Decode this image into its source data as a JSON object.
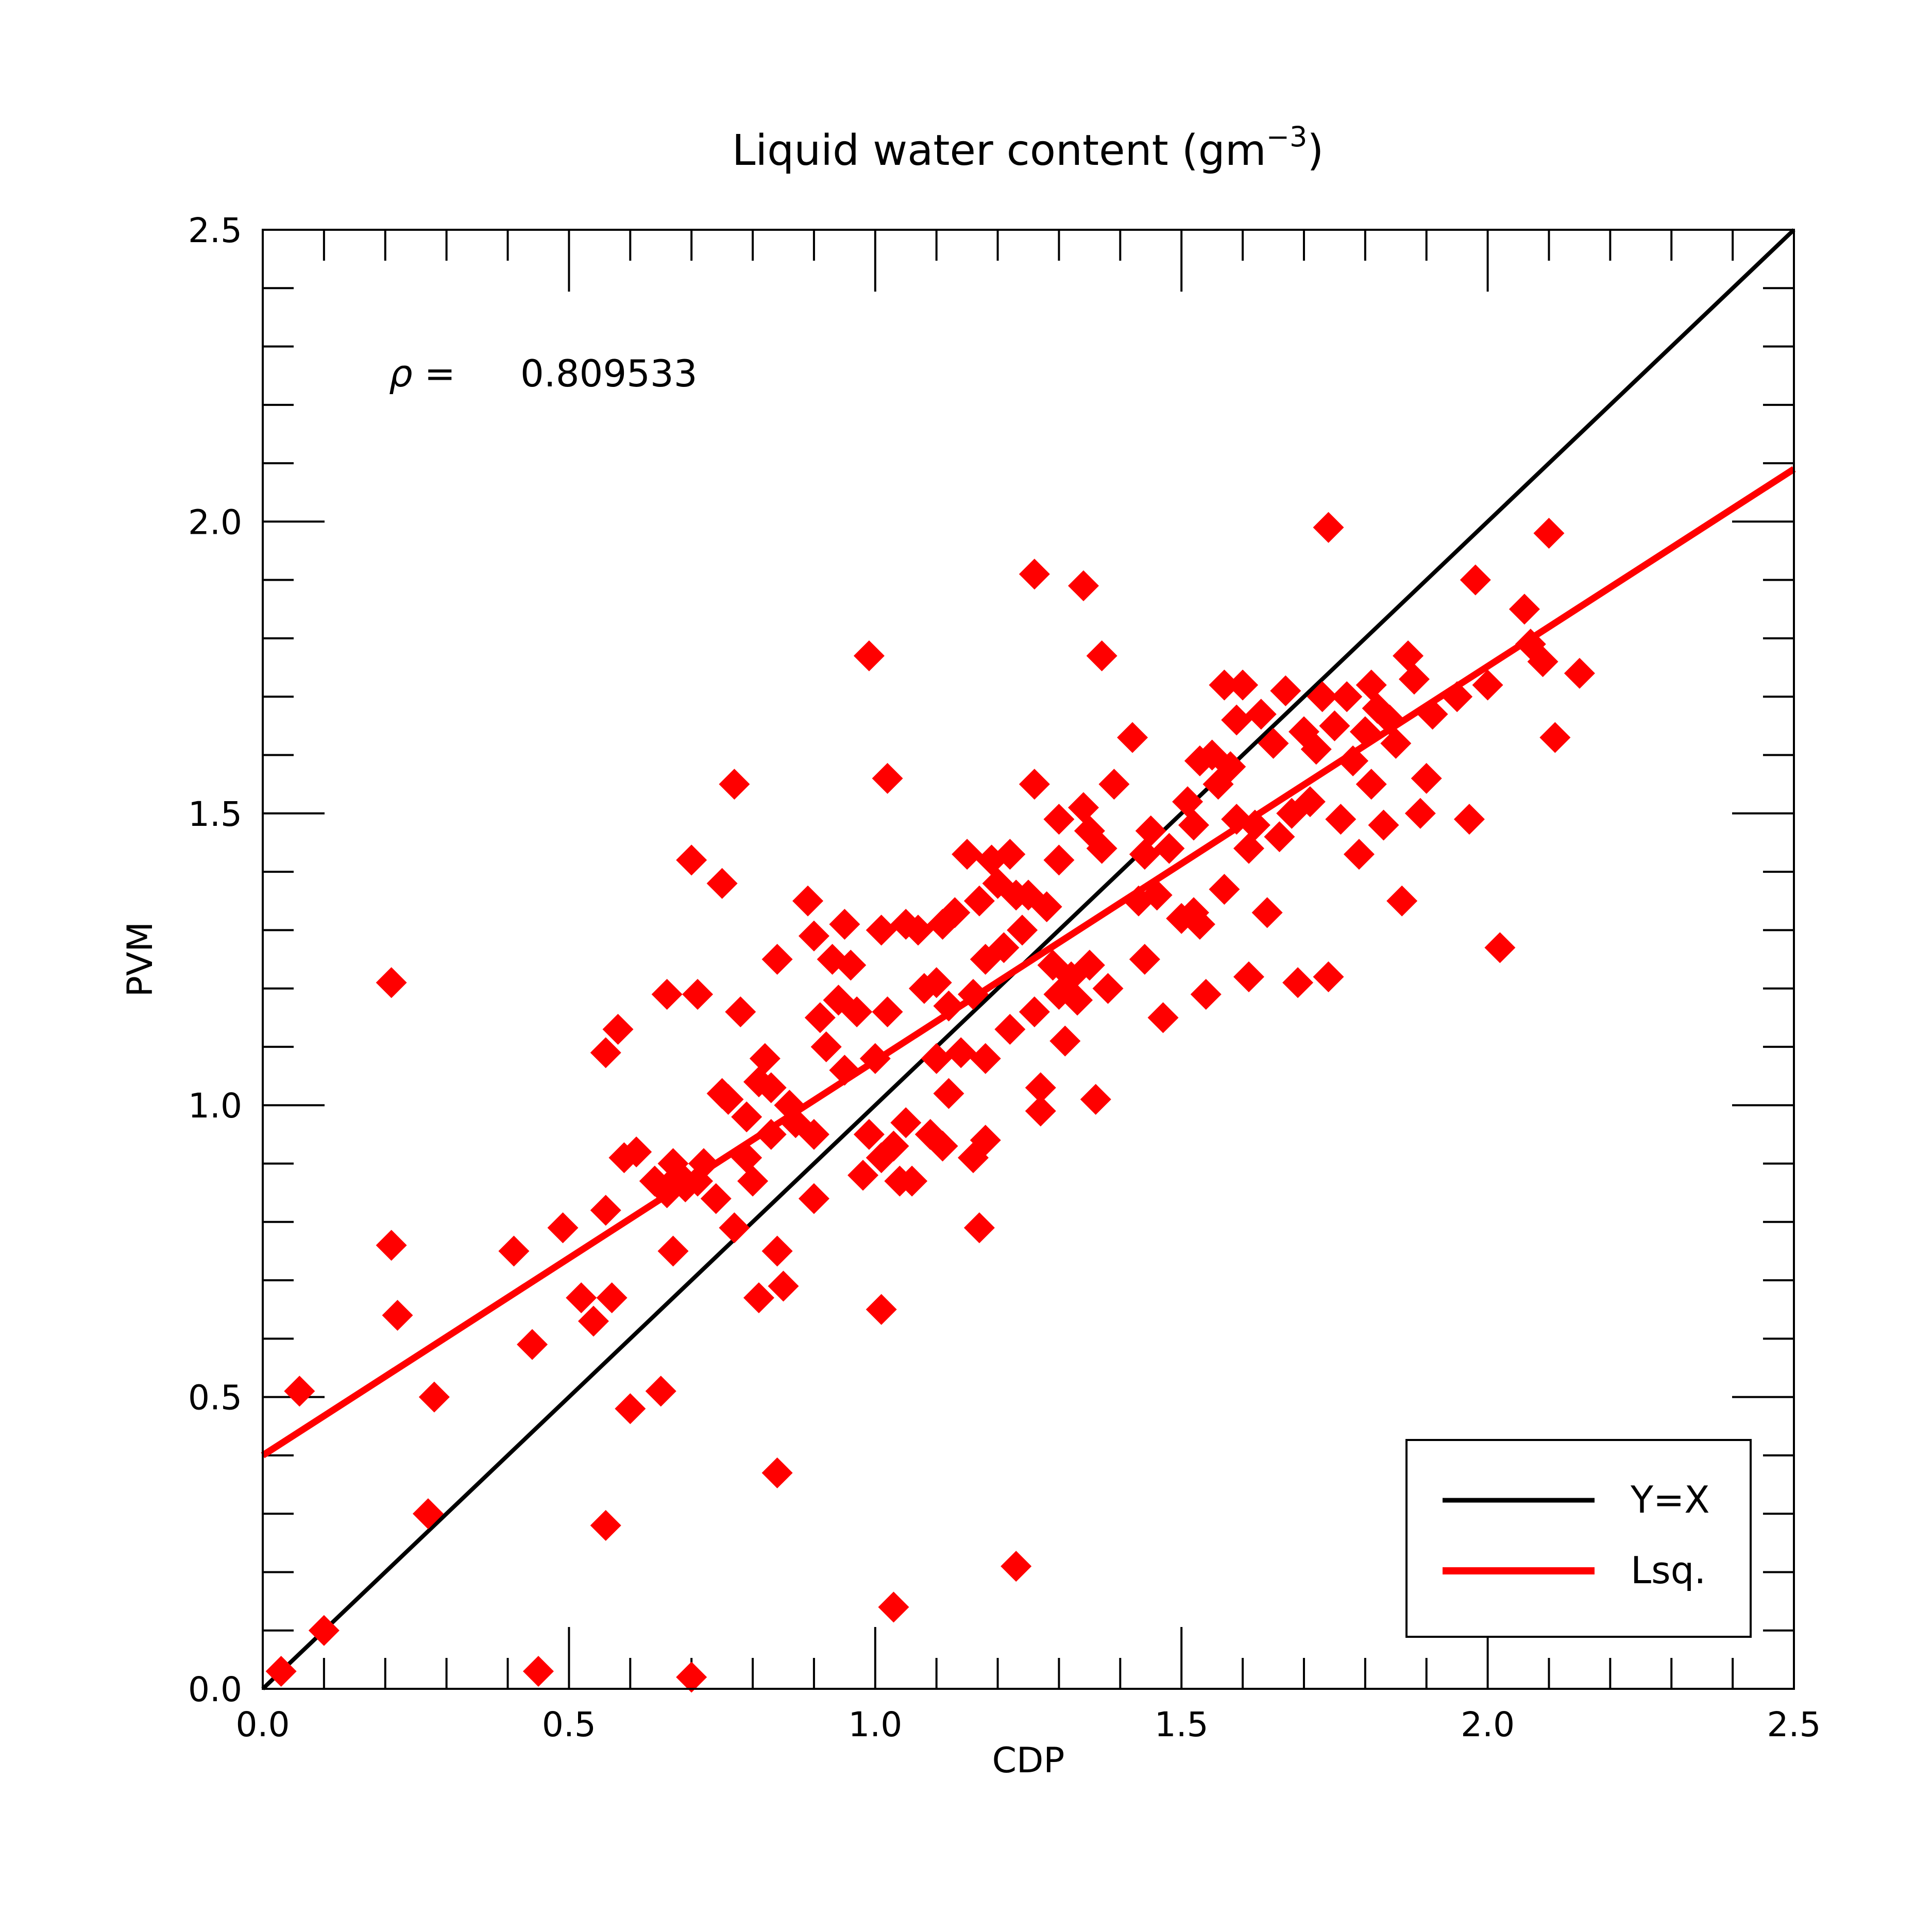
{
  "chart_data": {
    "type": "scatter",
    "title": "Liquid water content (gm",
    "title_superscript": "−3",
    "title_suffix": ")",
    "xlabel": "CDP",
    "ylabel": "PVM",
    "xlim": [
      0.0,
      2.5
    ],
    "ylim": [
      0.0,
      2.5
    ],
    "xticks": [
      "0.0",
      "0.5",
      "1.0",
      "1.5",
      "2.0",
      "2.5"
    ],
    "yticks": [
      "0.0",
      "0.5",
      "1.0",
      "1.5",
      "2.0",
      "2.5"
    ],
    "grid": false,
    "annotation": {
      "symbol": "ρ =",
      "value": "0.809533"
    },
    "legend": {
      "placement": "lower-right",
      "entries": [
        {
          "label": "Y=X",
          "color": "#000000"
        },
        {
          "label": "Lsq.",
          "color": "#ff0000"
        }
      ]
    },
    "lines": [
      {
        "name": "Y=X",
        "color": "#000000",
        "x": [
          0.0,
          2.5
        ],
        "y": [
          0.0,
          2.5
        ]
      },
      {
        "name": "Lsq.",
        "color": "#ff0000",
        "x": [
          0.0,
          2.5
        ],
        "y": [
          0.4,
          2.09
        ]
      }
    ],
    "marker_color": "#ff0000",
    "points": [
      [
        0.03,
        0.03
      ],
      [
        0.06,
        0.51
      ],
      [
        0.1,
        0.1
      ],
      [
        0.21,
        1.21
      ],
      [
        0.21,
        0.76
      ],
      [
        0.22,
        0.64
      ],
      [
        0.27,
        0.3
      ],
      [
        0.28,
        0.5
      ],
      [
        0.41,
        0.75
      ],
      [
        0.44,
        0.59
      ],
      [
        0.45,
        0.03
      ],
      [
        0.49,
        0.79
      ],
      [
        0.52,
        0.67
      ],
      [
        0.54,
        0.63
      ],
      [
        0.56,
        0.82
      ],
      [
        0.56,
        1.09
      ],
      [
        0.57,
        0.67
      ],
      [
        0.58,
        1.13
      ],
      [
        0.56,
        0.28
      ],
      [
        0.59,
        0.91
      ],
      [
        0.6,
        0.48
      ],
      [
        0.61,
        0.92
      ],
      [
        0.64,
        0.87
      ],
      [
        0.65,
        0.51
      ],
      [
        0.66,
        0.85
      ],
      [
        0.66,
        1.19
      ],
      [
        0.67,
        0.75
      ],
      [
        0.67,
        0.9
      ],
      [
        0.68,
        0.88
      ],
      [
        0.69,
        0.86
      ],
      [
        0.7,
        1.42
      ],
      [
        0.7,
        0.02
      ],
      [
        0.71,
        0.87
      ],
      [
        0.71,
        1.19
      ],
      [
        0.72,
        0.9
      ],
      [
        0.74,
        0.84
      ],
      [
        0.75,
        1.02
      ],
      [
        0.75,
        1.38
      ],
      [
        0.76,
        1.01
      ],
      [
        0.77,
        0.79
      ],
      [
        0.77,
        1.55
      ],
      [
        0.78,
        1.16
      ],
      [
        0.79,
        0.91
      ],
      [
        0.79,
        0.98
      ],
      [
        0.8,
        0.87
      ],
      [
        0.81,
        1.04
      ],
      [
        0.81,
        0.67
      ],
      [
        0.82,
        1.08
      ],
      [
        0.83,
        0.95
      ],
      [
        0.83,
        1.03
      ],
      [
        0.84,
        0.75
      ],
      [
        0.84,
        0.37
      ],
      [
        0.84,
        1.25
      ],
      [
        0.85,
        0.69
      ],
      [
        0.86,
        1.0
      ],
      [
        0.87,
        0.97
      ],
      [
        0.89,
        1.35
      ],
      [
        0.9,
        0.95
      ],
      [
        0.9,
        0.84
      ],
      [
        0.9,
        1.29
      ],
      [
        0.91,
        1.15
      ],
      [
        0.92,
        1.1
      ],
      [
        0.93,
        1.25
      ],
      [
        0.94,
        1.18
      ],
      [
        0.95,
        1.31
      ],
      [
        0.95,
        1.06
      ],
      [
        0.96,
        1.24
      ],
      [
        0.97,
        1.16
      ],
      [
        0.98,
        0.88
      ],
      [
        0.99,
        1.77
      ],
      [
        0.99,
        0.95
      ],
      [
        1.0,
        1.08
      ],
      [
        1.01,
        0.91
      ],
      [
        1.01,
        0.65
      ],
      [
        1.01,
        1.3
      ],
      [
        1.02,
        1.56
      ],
      [
        1.02,
        1.16
      ],
      [
        1.03,
        0.93
      ],
      [
        1.03,
        0.14
      ],
      [
        1.04,
        0.87
      ],
      [
        1.05,
        1.31
      ],
      [
        1.05,
        0.97
      ],
      [
        1.06,
        0.87
      ],
      [
        1.07,
        1.3
      ],
      [
        1.08,
        1.2
      ],
      [
        1.09,
        0.95
      ],
      [
        1.1,
        1.08
      ],
      [
        1.1,
        1.21
      ],
      [
        1.11,
        1.31
      ],
      [
        1.11,
        0.93
      ],
      [
        1.12,
        1.17
      ],
      [
        1.12,
        1.02
      ],
      [
        1.13,
        1.33
      ],
      [
        1.14,
        1.09
      ],
      [
        1.15,
        1.43
      ],
      [
        1.16,
        1.19
      ],
      [
        1.16,
        0.91
      ],
      [
        1.17,
        1.35
      ],
      [
        1.17,
        0.79
      ],
      [
        1.18,
        1.25
      ],
      [
        1.18,
        1.08
      ],
      [
        1.18,
        0.94
      ],
      [
        1.19,
        1.42
      ],
      [
        1.2,
        1.38
      ],
      [
        1.21,
        1.27
      ],
      [
        1.22,
        1.43
      ],
      [
        1.22,
        1.13
      ],
      [
        1.23,
        1.36
      ],
      [
        1.23,
        0.21
      ],
      [
        1.24,
        1.3
      ],
      [
        1.25,
        1.36
      ],
      [
        1.26,
        1.16
      ],
      [
        1.26,
        1.55
      ],
      [
        1.26,
        1.91
      ],
      [
        1.27,
        1.03
      ],
      [
        1.27,
        0.99
      ],
      [
        1.28,
        1.34
      ],
      [
        1.29,
        1.24
      ],
      [
        1.3,
        1.49
      ],
      [
        1.3,
        1.42
      ],
      [
        1.3,
        1.19
      ],
      [
        1.31,
        1.11
      ],
      [
        1.32,
        1.22
      ],
      [
        1.33,
        1.18
      ],
      [
        1.34,
        1.89
      ],
      [
        1.34,
        1.51
      ],
      [
        1.35,
        1.47
      ],
      [
        1.35,
        1.24
      ],
      [
        1.36,
        1.01
      ],
      [
        1.37,
        1.77
      ],
      [
        1.37,
        1.44
      ],
      [
        1.38,
        1.2
      ],
      [
        1.39,
        1.55
      ],
      [
        1.42,
        1.63
      ],
      [
        1.43,
        1.35
      ],
      [
        1.44,
        1.43
      ],
      [
        1.44,
        1.25
      ],
      [
        1.45,
        1.47
      ],
      [
        1.46,
        1.36
      ],
      [
        1.47,
        1.15
      ],
      [
        1.48,
        1.44
      ],
      [
        1.5,
        1.32
      ],
      [
        1.51,
        1.52
      ],
      [
        1.52,
        1.33
      ],
      [
        1.52,
        1.48
      ],
      [
        1.53,
        1.31
      ],
      [
        1.53,
        1.59
      ],
      [
        1.54,
        1.19
      ],
      [
        1.55,
        1.6
      ],
      [
        1.56,
        1.55
      ],
      [
        1.57,
        1.37
      ],
      [
        1.57,
        1.72
      ],
      [
        1.58,
        1.58
      ],
      [
        1.59,
        1.49
      ],
      [
        1.59,
        1.66
      ],
      [
        1.6,
        1.72
      ],
      [
        1.61,
        1.44
      ],
      [
        1.61,
        1.22
      ],
      [
        1.62,
        1.48
      ],
      [
        1.63,
        1.67
      ],
      [
        1.64,
        1.33
      ],
      [
        1.65,
        1.62
      ],
      [
        1.66,
        1.46
      ],
      [
        1.67,
        1.71
      ],
      [
        1.68,
        1.5
      ],
      [
        1.69,
        1.21
      ],
      [
        1.7,
        1.64
      ],
      [
        1.71,
        1.52
      ],
      [
        1.72,
        1.61
      ],
      [
        1.73,
        1.7
      ],
      [
        1.74,
        1.99
      ],
      [
        1.74,
        1.22
      ],
      [
        1.75,
        1.65
      ],
      [
        1.76,
        1.49
      ],
      [
        1.77,
        1.7
      ],
      [
        1.78,
        1.59
      ],
      [
        1.79,
        1.43
      ],
      [
        1.8,
        1.64
      ],
      [
        1.81,
        1.72
      ],
      [
        1.81,
        1.55
      ],
      [
        1.82,
        1.68
      ],
      [
        1.83,
        1.48
      ],
      [
        1.84,
        1.66
      ],
      [
        1.85,
        1.62
      ],
      [
        1.86,
        1.35
      ],
      [
        1.87,
        1.77
      ],
      [
        1.88,
        1.73
      ],
      [
        1.89,
        1.5
      ],
      [
        1.9,
        1.56
      ],
      [
        1.91,
        1.67
      ],
      [
        1.95,
        1.7
      ],
      [
        1.97,
        1.49
      ],
      [
        1.98,
        1.9
      ],
      [
        2.0,
        1.72
      ],
      [
        2.02,
        1.27
      ],
      [
        2.06,
        1.85
      ],
      [
        2.07,
        1.79
      ],
      [
        2.09,
        1.76
      ],
      [
        2.1,
        1.98
      ],
      [
        2.11,
        1.63
      ],
      [
        2.15,
        1.74
      ]
    ]
  }
}
